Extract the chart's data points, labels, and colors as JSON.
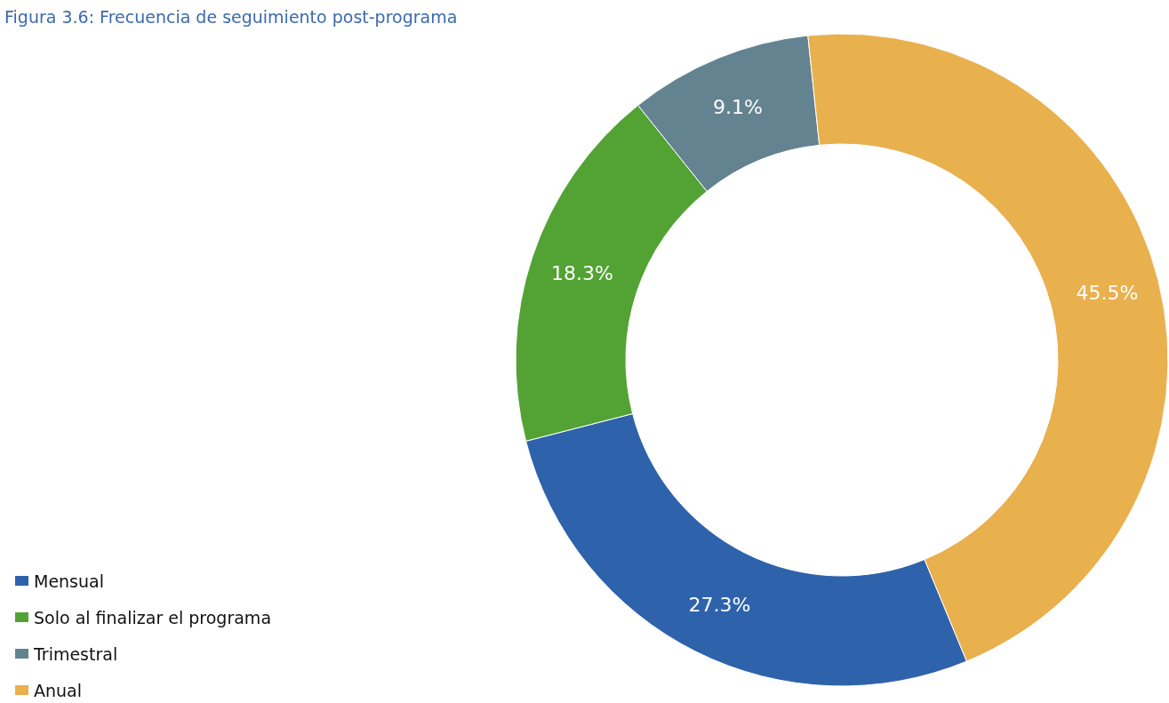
{
  "chart_data": {
    "type": "donut",
    "title": "Figura 3.6: Frecuencia de seguimiento post-programa",
    "categories": [
      "Mensual",
      "Solo al finalizar el programa",
      "Trimestral",
      "Anual"
    ],
    "values": [
      27.3,
      18.3,
      9.1,
      45.5
    ],
    "colors": [
      "#2e63ab",
      "#52a334",
      "#648391",
      "#e9b04e"
    ],
    "value_labels": [
      "27.3%",
      "18.3%",
      "9.1%",
      "45.5%"
    ],
    "legend": "bottom left"
  }
}
